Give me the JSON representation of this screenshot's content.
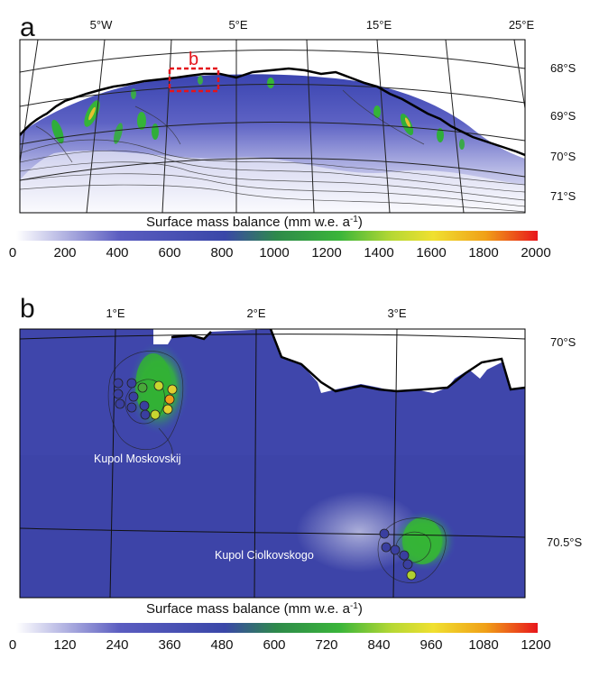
{
  "panel_a": {
    "letter": "a",
    "inset_label": "b",
    "lon_labels": [
      "5°W",
      "5°E",
      "15°E",
      "25°E"
    ],
    "lat_labels": [
      "68°S",
      "69°S",
      "70°S",
      "71°S"
    ],
    "colorbar_title": "Surface mass balance (mm w.e. a",
    "colorbar_unit_sup": "-1",
    "colorbar_close": ")",
    "ticks": [
      "0",
      "200",
      "400",
      "600",
      "800",
      "1000",
      "1200",
      "1400",
      "1600",
      "1800",
      "2000"
    ]
  },
  "panel_b": {
    "letter": "b",
    "lon_labels": [
      "1°E",
      "2°E",
      "3°E"
    ],
    "lat_labels": [
      "70°S",
      "70.5°S"
    ],
    "place_labels": [
      "Kupol Moskovskij",
      "Kupol Ciolkovskogo"
    ],
    "colorbar_title": "Surface mass balance (mm w.e. a",
    "colorbar_unit_sup": "-1",
    "colorbar_close": ")",
    "ticks": [
      "0",
      "120",
      "240",
      "360",
      "480",
      "600",
      "720",
      "840",
      "960",
      "1080",
      "1200"
    ]
  },
  "colors": {
    "ramp": [
      "#ffffff",
      "#4b50b4",
      "#3c8c3c",
      "#28aa2d",
      "#e6e632",
      "#f0a014",
      "#e61e1e"
    ]
  }
}
